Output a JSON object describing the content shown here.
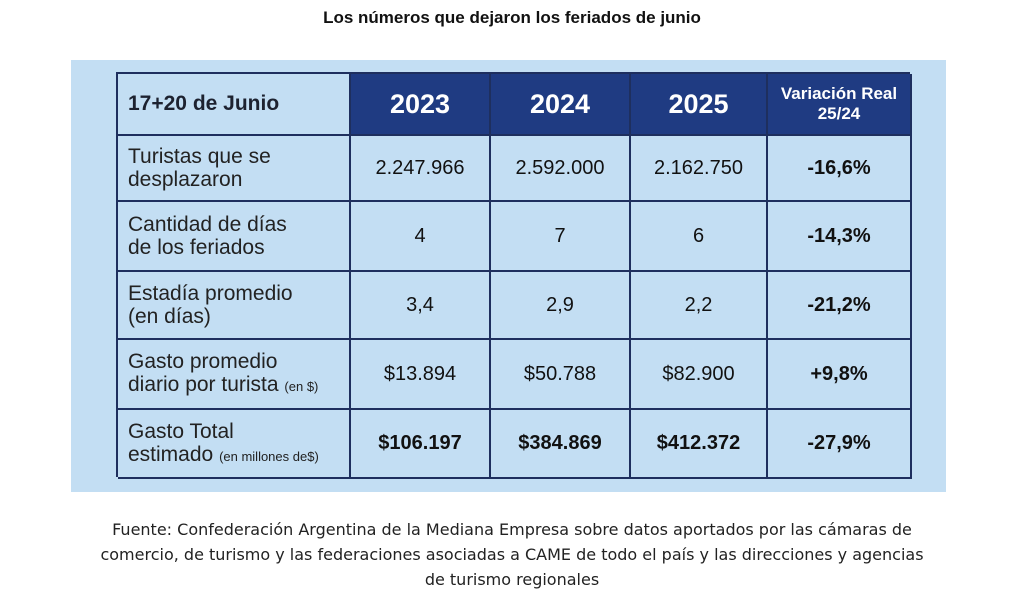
{
  "title": "Los números que dejaron los feriados de junio",
  "table": {
    "corner": "17+20 de Junio",
    "years": [
      "2023",
      "2024",
      "2025"
    ],
    "variation_header": [
      "Variación Real",
      "25/24"
    ],
    "rows": [
      {
        "label": [
          "Turistas que se",
          "desplazaron"
        ],
        "note": "",
        "values": [
          "2.247.966",
          "2.592.000",
          "2.162.750"
        ],
        "variation": "-16,6%",
        "bold_values": false
      },
      {
        "label": [
          "Cantidad de días",
          "de los feriados"
        ],
        "note": "",
        "values": [
          "4",
          "7",
          "6"
        ],
        "variation": "-14,3%",
        "bold_values": false
      },
      {
        "label": [
          "Estadía promedio",
          "(en días)"
        ],
        "note": "",
        "values": [
          "3,4",
          "2,9",
          "2,2"
        ],
        "variation": "-21,2%",
        "bold_values": false
      },
      {
        "label": [
          "Gasto promedio",
          "diario por turista"
        ],
        "note": "(en $)",
        "values": [
          "$13.894",
          "$50.788",
          "$82.900"
        ],
        "variation": "+9,8%",
        "bold_values": false
      },
      {
        "label": [
          "Gasto Total",
          "estimado"
        ],
        "note": "(en millones de$)",
        "values": [
          "$106.197",
          "$384.869",
          "$412.372"
        ],
        "variation": "-27,9%",
        "bold_values": true
      }
    ]
  },
  "caption": [
    "Fuente: Confederación Argentina de la Mediana Empresa sobre datos aportados por las cámaras de",
    "comercio, de turismo y las federaciones asociadas a CAME de todo el país y las direcciones y agencias",
    "de turismo regionales"
  ]
}
